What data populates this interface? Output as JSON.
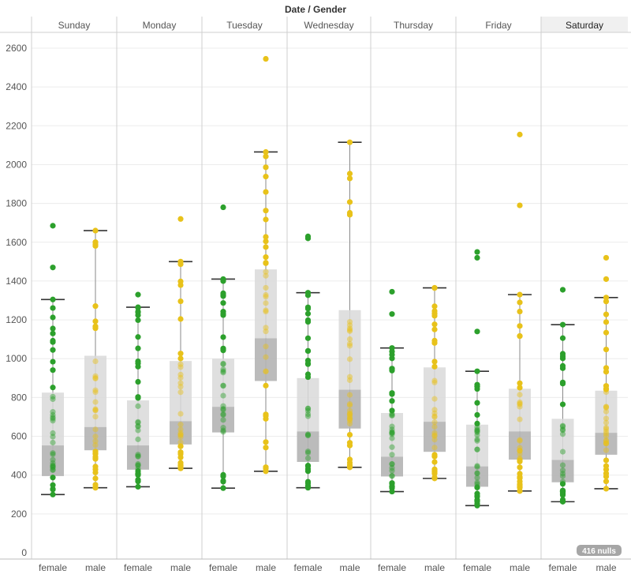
{
  "chart_data": {
    "type": "box",
    "title": "Date / Gender",
    "ylim": [
      0,
      2700
    ],
    "yticks": [
      0,
      200,
      400,
      600,
      800,
      1000,
      1200,
      1400,
      1600,
      1800,
      2000,
      2200,
      2400,
      2600
    ],
    "grid": true,
    "panels": [
      "Sunday",
      "Monday",
      "Tuesday",
      "Wednesday",
      "Thursday",
      "Friday",
      "Saturday"
    ],
    "highlighted_panel": "Saturday",
    "categories": [
      "female",
      "male"
    ],
    "colors": {
      "female": "#2ca02c",
      "male": "#e8c21a"
    },
    "nulls_badge": "416 nulls",
    "boxes": [
      {
        "day": "Sunday",
        "gender": "female",
        "min": 300,
        "q1": 395,
        "median": 553,
        "q3": 825,
        "max": 1305
      },
      {
        "day": "Sunday",
        "gender": "male",
        "min": 335,
        "q1": 528,
        "median": 648,
        "q3": 1015,
        "max": 1660
      },
      {
        "day": "Monday",
        "gender": "female",
        "min": 340,
        "q1": 428,
        "median": 553,
        "q3": 785,
        "max": 1265
      },
      {
        "day": "Monday",
        "gender": "male",
        "min": 435,
        "q1": 558,
        "median": 678,
        "q3": 988,
        "max": 1500
      },
      {
        "day": "Tuesday",
        "gender": "female",
        "min": 333,
        "q1": 620,
        "median": 752,
        "q3": 1000,
        "max": 1410
      },
      {
        "day": "Tuesday",
        "gender": "male",
        "min": 420,
        "q1": 885,
        "median": 1105,
        "q3": 1460,
        "max": 2065
      },
      {
        "day": "Wednesday",
        "gender": "female",
        "min": 335,
        "q1": 468,
        "median": 625,
        "q3": 900,
        "max": 1340
      },
      {
        "day": "Wednesday",
        "gender": "male",
        "min": 440,
        "q1": 640,
        "median": 840,
        "q3": 1250,
        "max": 2115
      },
      {
        "day": "Thursday",
        "gender": "female",
        "min": 315,
        "q1": 393,
        "median": 495,
        "q3": 720,
        "max": 1055
      },
      {
        "day": "Thursday",
        "gender": "male",
        "min": 383,
        "q1": 520,
        "median": 675,
        "q3": 955,
        "max": 1365
      },
      {
        "day": "Friday",
        "gender": "female",
        "min": 243,
        "q1": 340,
        "median": 445,
        "q3": 660,
        "max": 935
      },
      {
        "day": "Friday",
        "gender": "male",
        "min": 318,
        "q1": 480,
        "median": 625,
        "q3": 845,
        "max": 1330
      },
      {
        "day": "Saturday",
        "gender": "female",
        "min": 263,
        "q1": 363,
        "median": 478,
        "q3": 690,
        "max": 1175
      },
      {
        "day": "Saturday",
        "gender": "male",
        "min": 330,
        "q1": 505,
        "median": 618,
        "q3": 835,
        "max": 1315
      }
    ],
    "outliers": [
      {
        "day": "Sunday",
        "gender": "female",
        "values": [
          1470,
          1685
        ]
      },
      {
        "day": "Monday",
        "gender": "female",
        "values": [
          1330
        ]
      },
      {
        "day": "Monday",
        "gender": "male",
        "values": [
          1720
        ]
      },
      {
        "day": "Tuesday",
        "gender": "female",
        "values": [
          1780
        ]
      },
      {
        "day": "Tuesday",
        "gender": "male",
        "values": [
          2545
        ]
      },
      {
        "day": "Wednesday",
        "gender": "female",
        "values": [
          1620,
          1630
        ]
      },
      {
        "day": "Thursday",
        "gender": "female",
        "values": [
          1230,
          1345
        ]
      },
      {
        "day": "Friday",
        "gender": "female",
        "values": [
          1140,
          1520,
          1550
        ]
      },
      {
        "day": "Friday",
        "gender": "male",
        "values": [
          1790,
          2155
        ]
      },
      {
        "day": "Saturday",
        "gender": "female",
        "values": [
          1355
        ]
      },
      {
        "day": "Saturday",
        "gender": "male",
        "values": [
          1410,
          1520
        ]
      }
    ]
  }
}
